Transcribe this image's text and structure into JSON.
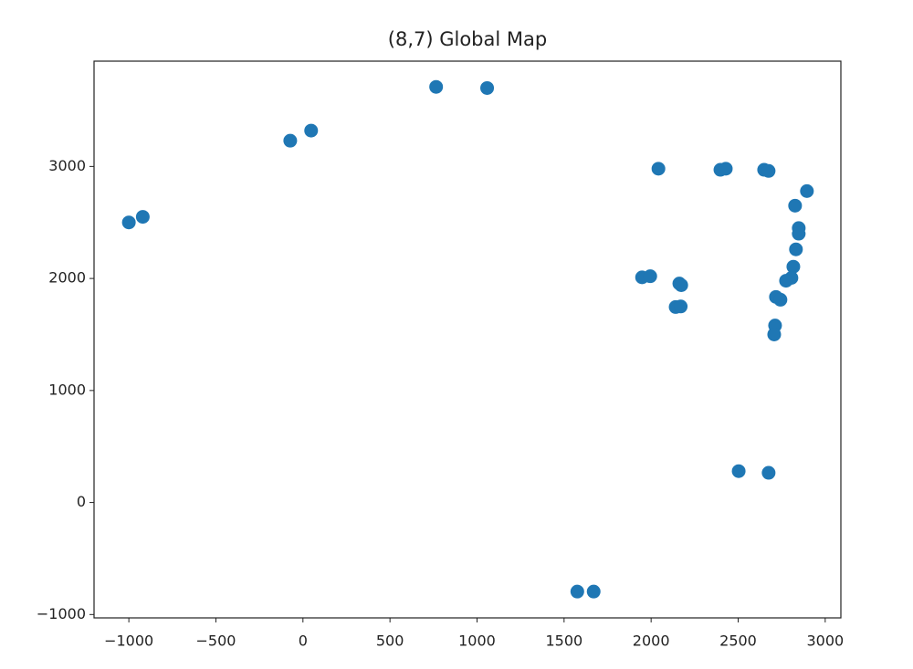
{
  "chart_data": {
    "type": "scatter",
    "title": "(8,7) Global Map",
    "color": "#1f77b4",
    "x": [
      -1000,
      -920,
      -73,
      47,
      765,
      1058,
      2042,
      2398,
      2429,
      2649,
      2675,
      2895,
      2827,
      2848,
      2848,
      2832,
      2817,
      2806,
      2775,
      1948,
      1995,
      2162,
      2173,
      2141,
      2170,
      2717,
      2743,
      2712,
      2707,
      2503,
      2675,
      1576,
      1670
    ],
    "y": [
      2500,
      2550,
      3230,
      3320,
      3710,
      3700,
      2980,
      2970,
      2980,
      2970,
      2960,
      2780,
      2650,
      2450,
      2400,
      2260,
      2105,
      2005,
      1980,
      2010,
      2020,
      1955,
      1940,
      1745,
      1750,
      1835,
      1810,
      1580,
      1500,
      280,
      265,
      -795,
      -795
    ],
    "xlim": [
      -1200,
      3090
    ],
    "ylim": [
      -1030,
      3940
    ],
    "xticks": [
      {
        "value": -1000,
        "label": "−1000"
      },
      {
        "value": -500,
        "label": "−500"
      },
      0,
      500,
      1000,
      1500,
      2000,
      2500,
      3000
    ],
    "yticks": [
      {
        "value": -1000,
        "label": "−1000"
      },
      0,
      1000,
      2000,
      3000
    ]
  }
}
